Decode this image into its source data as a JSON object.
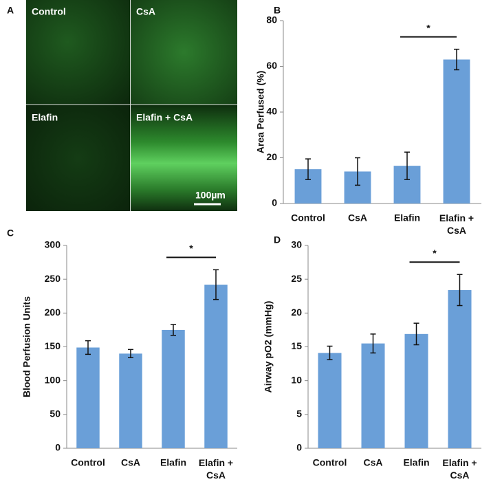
{
  "panel_a": {
    "label": "A",
    "images": [
      "Control",
      "CsA",
      "Elafin",
      "Elafin + CsA"
    ],
    "scale_bar": "100µm"
  },
  "chart_data": [
    {
      "type": "bar",
      "panel": "B",
      "y_label": "Area Perfused (%)",
      "categories": [
        "Control",
        "CsA",
        "Elafin",
        "Elafin + CsA"
      ],
      "values": [
        15,
        14,
        16.5,
        63
      ],
      "errors": [
        4.5,
        6,
        6,
        4.5
      ],
      "color": "#6a9fd8",
      "ylim": [
        0,
        80
      ],
      "yticks": [
        0,
        20,
        40,
        60,
        80
      ],
      "annotation": "*"
    },
    {
      "type": "bar",
      "panel": "C",
      "y_label": "Blood Perfusion Units",
      "categories": [
        "Control",
        "CsA",
        "Elafin",
        "Elafin + CsA"
      ],
      "values": [
        149,
        140,
        175,
        242
      ],
      "errors": [
        10,
        6,
        8,
        22
      ],
      "color": "#6a9fd8",
      "ylim": [
        0,
        300
      ],
      "yticks": [
        0,
        50,
        100,
        150,
        200,
        250,
        300
      ],
      "annotation": "*"
    },
    {
      "type": "bar",
      "panel": "D",
      "y_label": "Airway pO2 (mmHg)",
      "categories": [
        "Control",
        "CsA",
        "Elafin",
        "Elafin + CsA"
      ],
      "values": [
        14.1,
        15.5,
        16.9,
        23.4
      ],
      "errors": [
        1,
        1.4,
        1.6,
        2.3
      ],
      "color": "#6a9fd8",
      "ylim": [
        0,
        30
      ],
      "yticks": [
        0,
        5,
        10,
        15,
        20,
        25,
        30
      ],
      "annotation": "*"
    }
  ]
}
